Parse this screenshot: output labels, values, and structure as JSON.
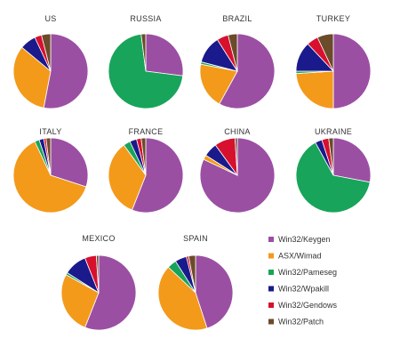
{
  "chart_data": {
    "type": "pie",
    "series_names": [
      "Win32/Keygen",
      "ASX/Wimad",
      "Win32/Pameseg",
      "Win32/Wpakill",
      "Win32/Gendows",
      "Win32/Patch"
    ],
    "colors": {
      "Win32/Keygen": "#9b4fa3",
      "ASX/Wimad": "#f39a1b",
      "Win32/Pameseg": "#18a45a",
      "Win32/Wpakill": "#1a1a8c",
      "Win32/Gendows": "#d7102e",
      "Win32/Patch": "#6b4b2a"
    },
    "pies": [
      {
        "title": "US",
        "values": [
          53,
          33,
          0,
          7,
          3,
          4
        ]
      },
      {
        "title": "RUSSIA",
        "values": [
          27,
          0,
          71,
          0,
          0,
          2
        ]
      },
      {
        "title": "BRAZIL",
        "values": [
          58,
          20,
          1,
          12,
          5,
          4
        ]
      },
      {
        "title": "TURKEY",
        "values": [
          50,
          24,
          1,
          13,
          5,
          7
        ]
      },
      {
        "title": "ITALY",
        "values": [
          30,
          63,
          2,
          2,
          1,
          2
        ]
      },
      {
        "title": "FRANCE",
        "values": [
          56,
          34,
          3,
          3,
          2,
          2
        ]
      },
      {
        "title": "CHINA",
        "values": [
          82,
          2,
          0,
          6,
          9,
          1
        ]
      },
      {
        "title": "UKRAINE",
        "values": [
          28,
          0,
          64,
          3,
          3,
          2
        ]
      },
      {
        "title": "MEXICO",
        "values": [
          56,
          27,
          1,
          10,
          5,
          1
        ]
      },
      {
        "title": "SPAIN",
        "values": [
          45,
          42,
          4,
          5,
          1,
          3
        ]
      }
    ],
    "legend_position": "bottom-right"
  }
}
